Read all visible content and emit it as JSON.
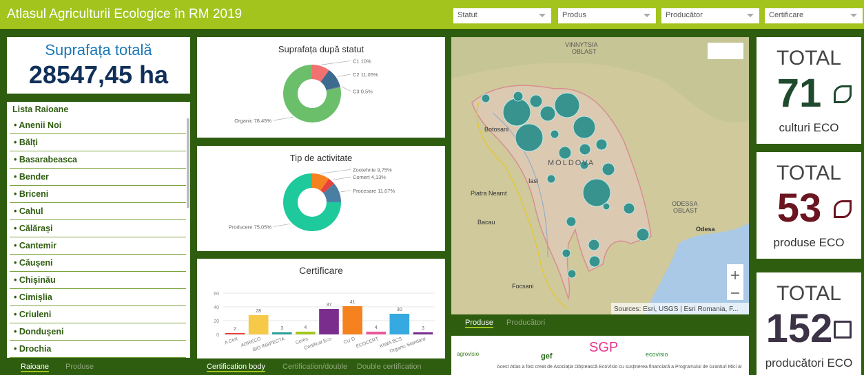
{
  "header": {
    "title": "Atlasul Agriculturii Ecologice în RM 2019",
    "filters": [
      "Statut",
      "Produs",
      "Producător",
      "Certificare"
    ]
  },
  "total_area": {
    "label": "Suprafața totală",
    "value": "28547,45 ha"
  },
  "district_list": {
    "title": "Lista Raioane",
    "items": [
      "• Anenii Noi",
      "• Bălți",
      "• Basarabeasca",
      "• Bender",
      "• Briceni",
      "• Cahul",
      "• Călărași",
      "• Cantemir",
      "• Căușeni",
      "• Chișinău",
      "• Cimișlia",
      "• Criuleni",
      "• Dondușeni",
      "• Drochia"
    ]
  },
  "left_tabs": [
    "Raioane",
    "Produse"
  ],
  "chart_data": [
    {
      "type": "donut",
      "title": "Suprafața după statut",
      "categories": [
        "C1",
        "C2",
        "C3",
        "Organic"
      ],
      "values": [
        10,
        11.05,
        0.5,
        78.45
      ],
      "value_labels": [
        "10%",
        "11,05%",
        "0,5%",
        "78,45%"
      ],
      "colors": [
        "#f07170",
        "#3d6b8e",
        "#6a7f8f",
        "#6cbf6a"
      ]
    },
    {
      "type": "donut",
      "title": "Tip de activitate",
      "categories": [
        "Zootehnie",
        "Comerț",
        "Procesare",
        "Producere"
      ],
      "values": [
        9.75,
        4.13,
        11.07,
        75.05
      ],
      "value_labels": [
        "9,75%",
        "4,13%",
        "11,07%",
        "75,05%"
      ],
      "colors": [
        "#f5821f",
        "#e8423f",
        "#4a7fa3",
        "#1ec99b"
      ]
    },
    {
      "type": "bar",
      "title": "Certificare",
      "categories": [
        "A Cert",
        "AGRECO",
        "BIO INSPECTA",
        "Ceres",
        "Certificat Eco",
        "CU D",
        "ECOCERT",
        "KIWA BCS",
        "Organic Standard"
      ],
      "values": [
        2,
        28,
        3,
        4,
        37,
        41,
        4,
        30,
        3
      ],
      "colors": [
        "#e8423f",
        "#f7c948",
        "#2aa198",
        "#a3c61e",
        "#7b2d8e",
        "#f5821f",
        "#e85a9a",
        "#36a9e1",
        "#7b2d8e"
      ],
      "ylim": [
        0,
        60
      ],
      "yticks": [
        0,
        20,
        40,
        60
      ],
      "grid": true
    }
  ],
  "chart_tabs": [
    "Certification body",
    "Certification/double",
    "Double certification"
  ],
  "map": {
    "labels": [
      "VINNYTSIA",
      "OBLAST",
      "MOLDOVA",
      "ODESSA",
      "OBLAST",
      "Odesa",
      "Botosani",
      "Piatra Neamt",
      "Bacau",
      "Focsani",
      "Iasi"
    ],
    "attribution": "Sources: Esri, USGS | Esri Romania, F..."
  },
  "map_tabs": [
    "Produse",
    "Producători"
  ],
  "footer": {
    "logos": [
      "agrovisio",
      "gef",
      "SGP",
      "ecovisio"
    ],
    "text": "Acest Atlas a fost creat de Asociația Obștească EcoVisio cu susținerea financiară a Programului de Granturi Mici al"
  },
  "kpis": [
    {
      "title": "TOTAL",
      "value": "71",
      "label": "culturi ECO"
    },
    {
      "title": "TOTAL",
      "value": "53",
      "label": "produse ECO"
    },
    {
      "title": "TOTAL",
      "value": "152",
      "label": "producători ECO"
    }
  ]
}
